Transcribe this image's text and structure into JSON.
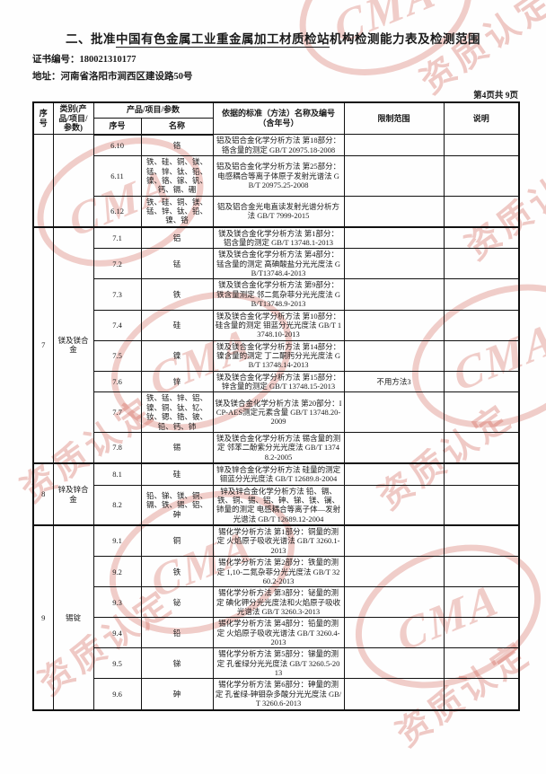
{
  "header": {
    "title_prefix": "二、批准",
    "title_underlined": "中国有色金属工业重金属加工材质检站",
    "title_suffix": "机构检测能力表及检测范围",
    "cert_label": "证书编号：",
    "cert_number": "180021310177",
    "address_label": "地址：",
    "address_value": "河南省洛阳市涧西区建设路50号",
    "page_info": "第4页共 9页"
  },
  "watermark": {
    "text": "资质认定",
    "logo": "CMA",
    "color": "#cd4e42"
  },
  "table": {
    "columns": {
      "seq": "序号",
      "category": "类别(产品/项目/参数)",
      "product_group": "产品/项目/参数",
      "sub_seq": "序号",
      "sub_name": "名称",
      "standard": "依据的标准（方法）名称及编号（含年号）",
      "limit": "限制范围",
      "note": "说明"
    },
    "groups": [
      {
        "seq": "",
        "category": "",
        "rows": [
          {
            "no": "6.10",
            "name": "铬",
            "standard": "铝及铝合金化学分析方法 第18部分：铬含量的测定 GB/T 20975.18-2008",
            "limit": "",
            "note": ""
          },
          {
            "no": "6.11",
            "name": "铁、硅、铜、镁、锰、锌、钛、铅、镍、铬、镓、钒、钙、镉、硼",
            "standard": "铝及铝合金化学分析方法 第25部分：电感耦合等离子体原子发射光谱法 GB/T 20975.25-2008",
            "limit": "",
            "note": ""
          },
          {
            "no": "6.12",
            "name": "铁、硅、铜、镁、锰、锌、钛、铅、镍、铬",
            "standard": "铝及铝合金光电直读发射光谱分析方法 GB/T 7999-2015",
            "limit": "",
            "note": ""
          }
        ]
      },
      {
        "seq": "7",
        "category": "镁及镁合金",
        "rows": [
          {
            "no": "7.1",
            "name": "铝",
            "standard": "镁及镁合金化学分析方法 第1部分：铝含量的测定 GB/T 13748.1-2013",
            "limit": "",
            "note": ""
          },
          {
            "no": "7.2",
            "name": "锰",
            "standard": "镁及镁合金化学分析方法 第4部分：锰含量的测定 高碘酸盐分光光度法 GB/T13748.4-2013",
            "limit": "",
            "note": ""
          },
          {
            "no": "7.3",
            "name": "铁",
            "standard": "镁及镁合金化学分析方法 第9部分：铁含量测定 邻二氮杂菲分光光度法 GB/T13748.9-2013",
            "limit": "",
            "note": ""
          },
          {
            "no": "7.4",
            "name": "硅",
            "standard": "镁及镁合金化学分析方法 第10部分：硅含量的测定 钼蓝分光光度法 GB/T 13748.10-2013",
            "limit": "",
            "note": ""
          },
          {
            "no": "7.5",
            "name": "镍",
            "standard": "镁及镁合金化学分析方法 第14部分：镍含量的测定 丁二酮肟分光光度法 GB/T 13748.14-2013",
            "limit": "",
            "note": ""
          },
          {
            "no": "7.6",
            "name": "锌",
            "standard": "镁及镁合金化学分析方法 第15部分：锌含量的测定 GB/T 13748.15-2013",
            "limit": "不用方法3",
            "note": ""
          },
          {
            "no": "7.7",
            "name": "铁、锰、锌、铝、镍、铜、钛、钇、钕、锶、锆、铍、铅、钙、铈",
            "standard": "镁及镁合金化学分析方法 第20部分：ICP-AES测定元素含量 GB/T 13748.20-2009",
            "limit": "",
            "note": ""
          },
          {
            "no": "7.8",
            "name": "锡",
            "standard": "镁及镁合金化学分析方法 锡含量的测定 邻苯二酚紫分光光度法 GB/T 13748.2-2005",
            "limit": "",
            "note": ""
          }
        ]
      },
      {
        "seq": "8",
        "category": "锌及锌合金",
        "rows": [
          {
            "no": "8.1",
            "name": "硅",
            "standard": "锌及锌合金化学分析方法 硅量的测定 钼蓝分光光度法 GB/T 12689.8-2004",
            "limit": "",
            "note": ""
          },
          {
            "no": "8.2",
            "name": "铅、锑、镁、铜、镉、铁、锡、铝、砷",
            "standard": "锌及锌合金化学分析方法 铅、镉、铁、铜、锡、铝、砷、锑、镁、镧、铈量的测定 电感耦合等离子体—发射光谱法 GB/T 12689.12-2004",
            "limit": "",
            "note": ""
          }
        ]
      },
      {
        "seq": "9",
        "category": "锡锭",
        "rows": [
          {
            "no": "9.1",
            "name": "铜",
            "standard": "锡化学分析方法 第1部分：铜量的测定 火焰原子吸收光谱法 GB/T 3260.1-2013",
            "limit": "",
            "note": ""
          },
          {
            "no": "9.2",
            "name": "铁",
            "standard": "锡化学分析方法 第2部分：铁量的测定 1,10-二氮杂菲分光光度法 GB/T 3260.2-2013",
            "limit": "",
            "note": ""
          },
          {
            "no": "9.3",
            "name": "铋",
            "standard": "锡化学分析方法 第3部分：铋量的测定 碘化钾分光光度法和火焰原子吸收光谱法 GB/T 3260.3-2013",
            "limit": "",
            "note": ""
          },
          {
            "no": "9.4",
            "name": "铅",
            "standard": "锡化学分析方法 第4部分：铅量的测定 火焰原子吸收光谱法 GB/T 3260.4-2013",
            "limit": "",
            "note": ""
          },
          {
            "no": "9.5",
            "name": "锑",
            "standard": "锡化学分析方法 第5部分：锑量的测定 孔雀绿分光光度法 GB/T 3260.5-2013",
            "limit": "",
            "note": ""
          },
          {
            "no": "9.6",
            "name": "砷",
            "standard": "锡化学分析方法 第6部分：砷量的测定 孔雀绿-砷钼杂多酸分光光度法 GB/T 3260.6-2013",
            "limit": "",
            "note": ""
          }
        ]
      }
    ]
  }
}
